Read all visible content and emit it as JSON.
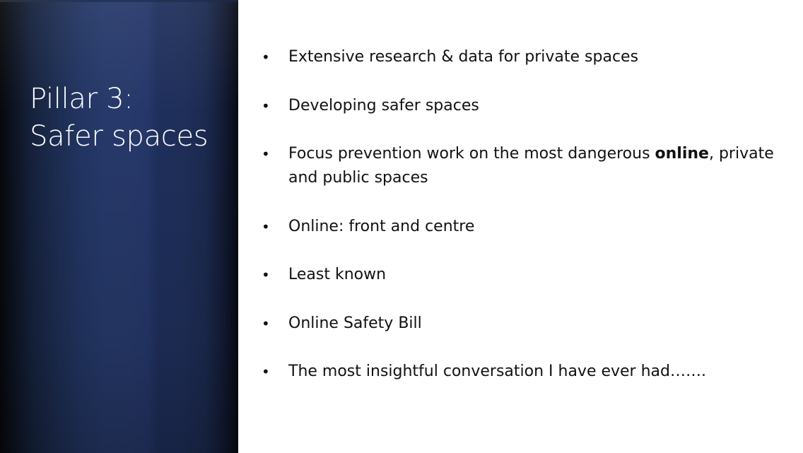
{
  "slide": {
    "title_line1": "Pillar 3:",
    "title_line2": "Safer spaces",
    "bullets": [
      "Extensive research & data for private spaces",
      "Developing safer spaces",
      {
        "before": "Focus prevention work on the most dangerous ",
        "bold": "online",
        "after": ", private and public spaces"
      },
      "Online: front and centre",
      "Least known",
      "Online Safety Bill",
      "The most insightful conversation I have ever had……."
    ]
  },
  "colors": {
    "panel": "#26396a",
    "panel_edge": "#07080c",
    "title_text": "#ffffff",
    "body_text": "#111111",
    "background": "#ffffff"
  }
}
